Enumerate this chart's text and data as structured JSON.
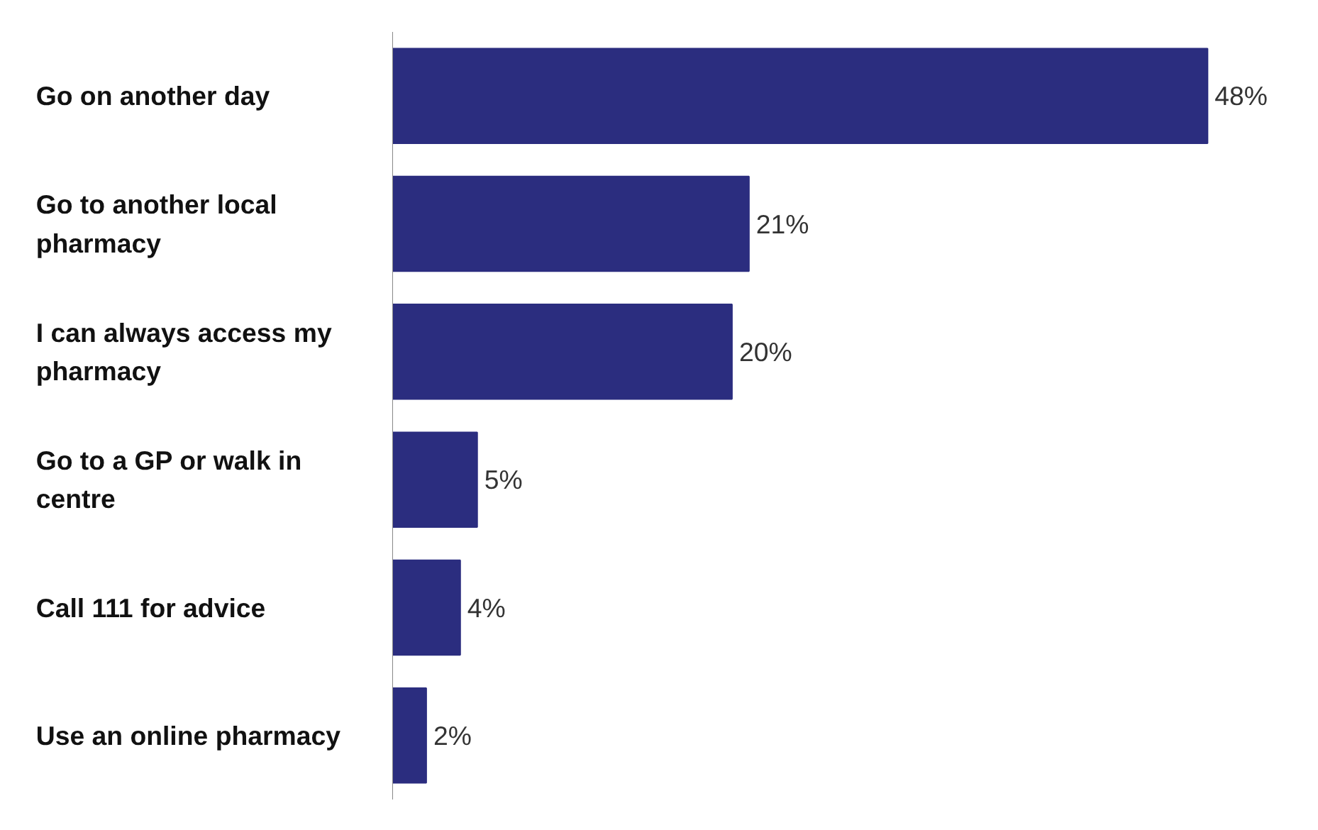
{
  "chart_data": {
    "type": "bar",
    "orientation": "horizontal",
    "categories": [
      "Go on another day",
      "Go to another local pharmacy",
      "I can always access my pharmacy",
      "Go to a GP or walk in centre",
      "Call 111 for advice",
      "Use an online pharmacy"
    ],
    "values": [
      48,
      21,
      20,
      5,
      4,
      2
    ],
    "value_labels": [
      "48%",
      "21%",
      "20%",
      "5%",
      "4%",
      "2%"
    ],
    "color": "#2b2d7f",
    "grid": false
  }
}
